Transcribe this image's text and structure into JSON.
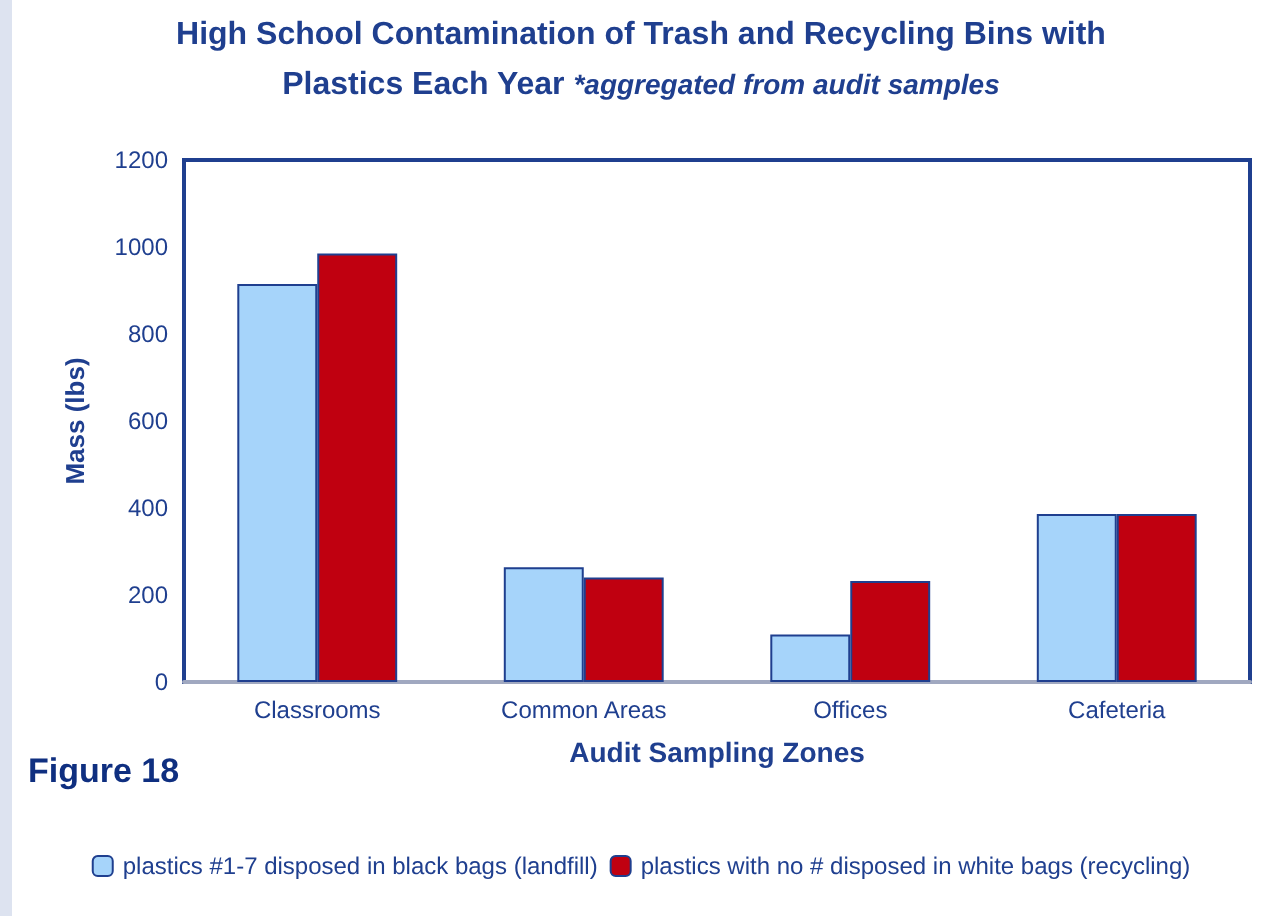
{
  "chart_data": {
    "type": "bar",
    "title": "High School Contamination of Trash and Recycling Bins with Plastics Each Year",
    "subtitle": "*aggregated from audit samples",
    "xlabel": "Audit Sampling Zones",
    "ylabel": "Mass (lbs)",
    "annotations": [
      "Figure 18"
    ],
    "categories": [
      "Classrooms",
      "Common Areas",
      "Offices",
      "Cafeteria"
    ],
    "series": [
      {
        "name": "plastics #1-7 disposed in black bags (landfill)",
        "color": "#a6d4fa",
        "values": [
          915,
          264,
          109,
          386
        ]
      },
      {
        "name": "plastics with no # disposed in white bags (recycling)",
        "color": "#c00010",
        "values": [
          985,
          240,
          232,
          386
        ]
      }
    ],
    "ylim": [
      0,
      1200
    ],
    "yticks": [
      0,
      200,
      400,
      600,
      800,
      1000,
      1200
    ],
    "grid": false,
    "legend": "bottom"
  }
}
